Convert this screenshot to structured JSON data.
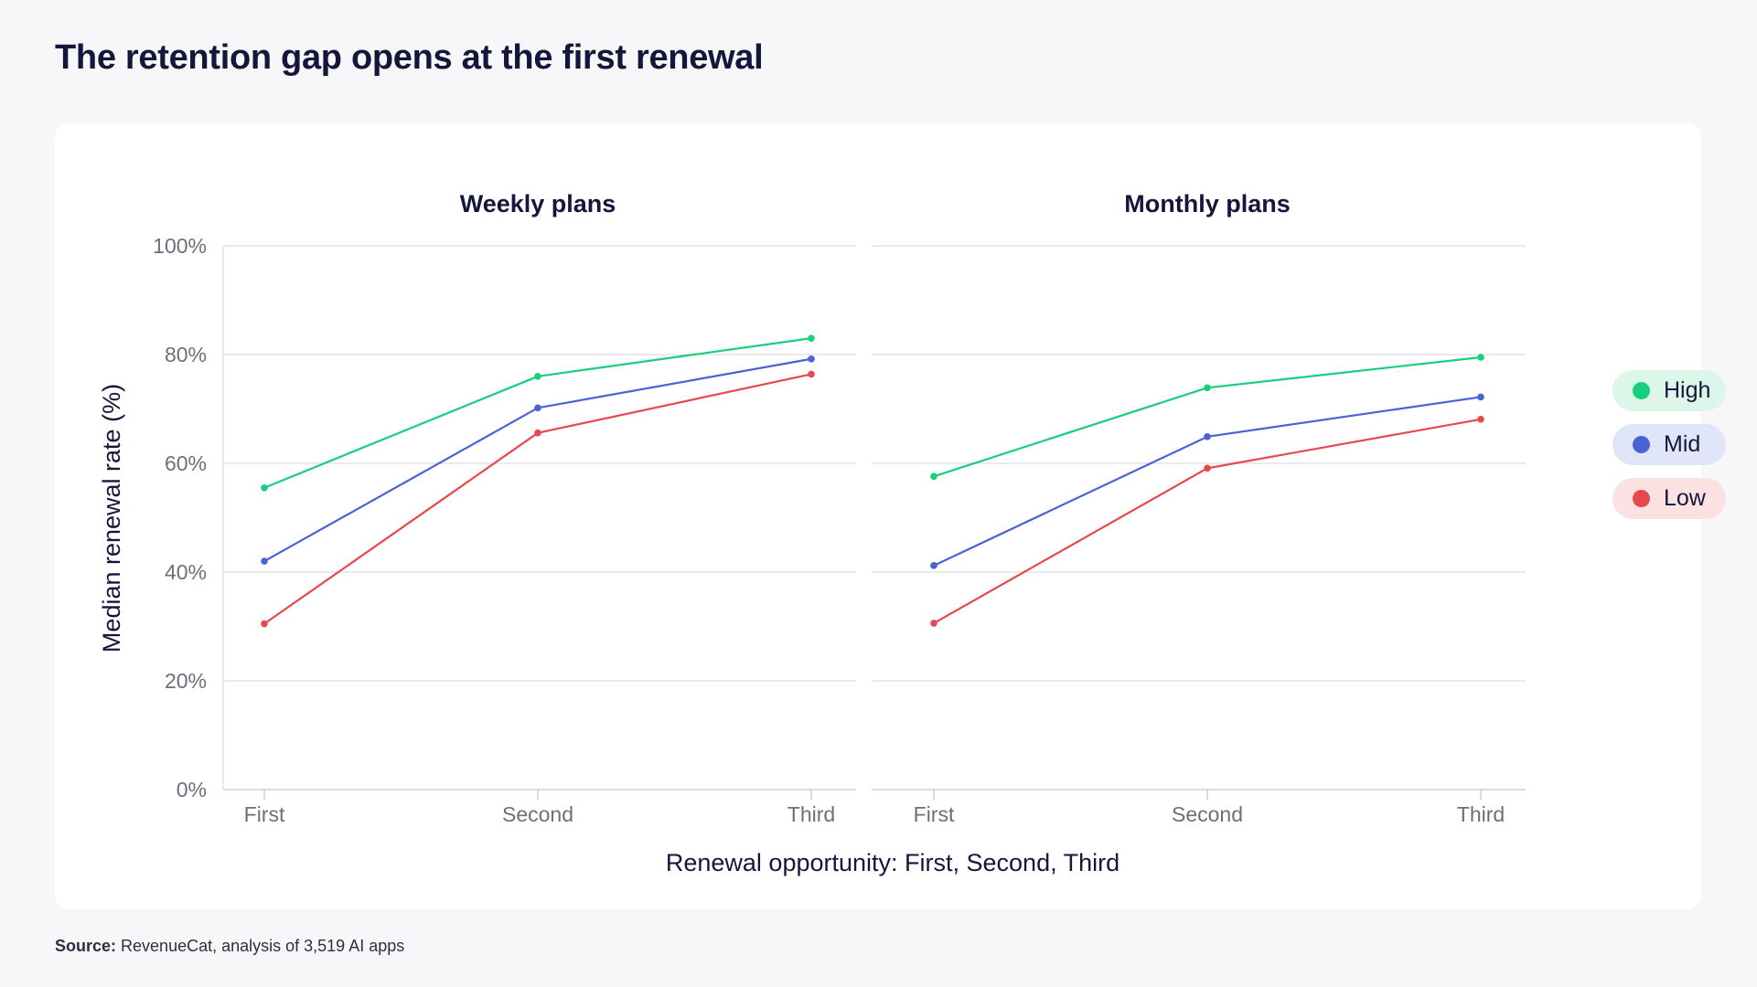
{
  "title": "The retention gap opens at the first renewal",
  "source": {
    "prefix": "Source:",
    "text": " RevenueCat, analysis of 3,519 AI apps"
  },
  "colors": {
    "High": "#17cf7c",
    "Mid": "#4a62d4",
    "Low": "#e5484d",
    "legend_bg": {
      "High": "#dcf6ea",
      "Mid": "#e1e5f8",
      "Low": "#fbe1e2"
    }
  },
  "legend": [
    {
      "label": "High"
    },
    {
      "label": "Mid"
    },
    {
      "label": "Low"
    }
  ],
  "chart_data": [
    {
      "type": "line",
      "title": "Weekly plans",
      "categories": [
        "First",
        "Second",
        "Third"
      ],
      "ylabel": "Median renewal rate (%)",
      "xlabel": "Renewal opportunity: First, Second, Third",
      "ylim": [
        0,
        100
      ],
      "yticks": [
        "0%",
        "20%",
        "40%",
        "60%",
        "80%",
        "100%"
      ],
      "grid": true,
      "legend_position": "right",
      "series": [
        {
          "name": "High",
          "values": [
            55.5,
            76,
            83
          ]
        },
        {
          "name": "Mid",
          "values": [
            42,
            70.2,
            79.2
          ]
        },
        {
          "name": "Low",
          "values": [
            30.5,
            65.6,
            76.4
          ]
        }
      ]
    },
    {
      "type": "line",
      "title": "Monthly plans",
      "categories": [
        "First",
        "Second",
        "Third"
      ],
      "ylim": [
        0,
        100
      ],
      "grid": true,
      "series": [
        {
          "name": "High",
          "values": [
            57.6,
            73.9,
            79.5
          ]
        },
        {
          "name": "Mid",
          "values": [
            41.2,
            64.9,
            72.2
          ]
        },
        {
          "name": "Low",
          "values": [
            30.6,
            59.1,
            68.1
          ]
        }
      ]
    }
  ]
}
